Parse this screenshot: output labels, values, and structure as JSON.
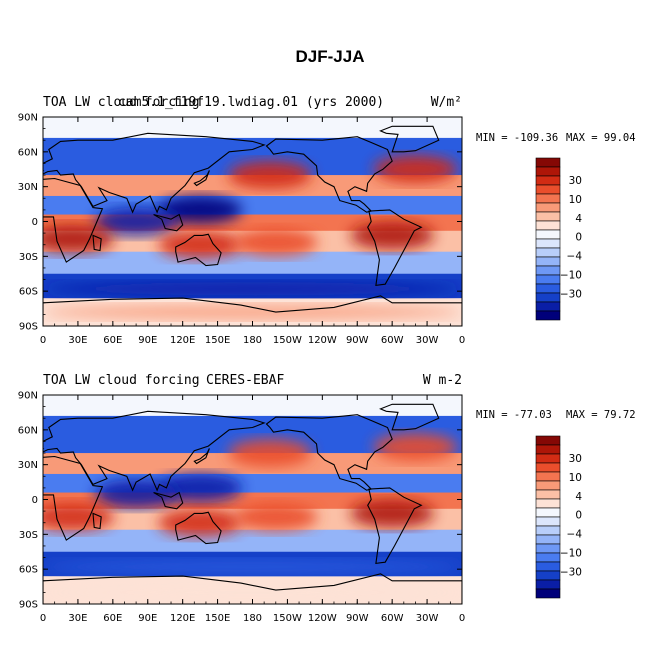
{
  "figure_title": "DJF-JJA",
  "chart_data": [
    {
      "type": "heatmap",
      "title_left": "TOA LW cloud forcing",
      "title_center": "cam5.1_f19f19.lwdiag.01 (yrs 2000)",
      "title_right": "W/m²",
      "min_text": "MIN = -109.36",
      "max_text": "MAX =  99.04",
      "min": -109.36,
      "max": 99.04,
      "xlabel": "",
      "ylabel": "",
      "lon_range": [
        0,
        360
      ],
      "lat_range": [
        -90,
        90
      ],
      "x_tick_labels": [
        "0",
        "30E",
        "60E",
        "90E",
        "120E",
        "150E",
        "180",
        "150W",
        "120W",
        "90W",
        "60W",
        "30W",
        "0"
      ],
      "y_tick_labels": [
        "90N",
        "60N",
        "30N",
        "0",
        "30S",
        "60S",
        "90S"
      ],
      "colorbar_labels": [
        "30",
        "10",
        "4",
        "0",
        "−4",
        "−10",
        "−30"
      ],
      "colorbar_levels": [
        -50,
        -40,
        -30,
        -20,
        -15,
        -10,
        -6,
        -4,
        -2,
        0,
        2,
        4,
        6,
        10,
        15,
        20,
        30,
        40,
        50
      ],
      "regions": [
        {
          "name": "west-pacific-warm-pool-negative",
          "lon": 135,
          "lat": 10,
          "value": -40
        },
        {
          "name": "indian-ocean-negative",
          "lon": 80,
          "lat": 0,
          "value": -30
        },
        {
          "name": "africa-positive",
          "lon": 25,
          "lat": -15,
          "value": 35
        },
        {
          "name": "australia-positive",
          "lon": 135,
          "lat": -20,
          "value": 30
        },
        {
          "name": "south-america-positive",
          "lon": 300,
          "lat": -12,
          "value": 40
        },
        {
          "name": "north-pacific-positive",
          "lon": 195,
          "lat": 40,
          "value": 25
        },
        {
          "name": "north-atlantic-positive",
          "lon": 320,
          "lat": 45,
          "value": 25
        },
        {
          "name": "south-pacific-convergence-positive",
          "lon": 200,
          "lat": -18,
          "value": 20
        },
        {
          "name": "southern-ocean-negative",
          "lon": 180,
          "lat": -58,
          "value": -30
        },
        {
          "name": "antarctic-positive",
          "lon": 180,
          "lat": -78,
          "value": 8
        }
      ]
    },
    {
      "type": "heatmap",
      "title_left": "TOA LW cloud forcing",
      "title_center": "CERES-EBAF",
      "title_right": "W m-2",
      "min_text": "MIN = -77.03",
      "max_text": "MAX =  79.72",
      "min": -77.03,
      "max": 79.72,
      "xlabel": "",
      "ylabel": "",
      "lon_range": [
        0,
        360
      ],
      "lat_range": [
        -90,
        90
      ],
      "x_tick_labels": [
        "0",
        "30E",
        "60E",
        "90E",
        "120E",
        "150E",
        "180",
        "150W",
        "120W",
        "90W",
        "60W",
        "30W",
        "0"
      ],
      "y_tick_labels": [
        "90N",
        "60N",
        "30N",
        "0",
        "30S",
        "60S",
        "90S"
      ],
      "colorbar_labels": [
        "30",
        "10",
        "4",
        "0",
        "−4",
        "−10",
        "−30"
      ],
      "colorbar_levels": [
        -50,
        -40,
        -30,
        -20,
        -15,
        -10,
        -6,
        -4,
        -2,
        0,
        2,
        4,
        6,
        10,
        15,
        20,
        30,
        40,
        50
      ],
      "regions": [
        {
          "name": "west-pacific-warm-pool-negative",
          "lon": 135,
          "lat": 10,
          "value": -35
        },
        {
          "name": "indian-ocean-negative",
          "lon": 80,
          "lat": 5,
          "value": -30
        },
        {
          "name": "africa-positive",
          "lon": 25,
          "lat": -15,
          "value": 30
        },
        {
          "name": "australia-positive",
          "lon": 135,
          "lat": -20,
          "value": 25
        },
        {
          "name": "south-america-positive",
          "lon": 300,
          "lat": -12,
          "value": 35
        },
        {
          "name": "north-pacific-positive",
          "lon": 195,
          "lat": 40,
          "value": 20
        },
        {
          "name": "north-atlantic-positive",
          "lon": 320,
          "lat": 45,
          "value": 20
        },
        {
          "name": "south-pacific-convergence-positive",
          "lon": 200,
          "lat": -15,
          "value": 20
        },
        {
          "name": "southern-ocean-negative",
          "lon": 180,
          "lat": -58,
          "value": -20
        },
        {
          "name": "antarctic-positive",
          "lon": 180,
          "lat": -80,
          "value": 4
        }
      ]
    }
  ],
  "palette": [
    "#00007a",
    "#0a1ea6",
    "#1540c8",
    "#2a5ce0",
    "#4a7cf0",
    "#6e98f5",
    "#94b4f8",
    "#b8cefa",
    "#dce6fc",
    "#f4f7fd",
    "#fde2d6",
    "#fbc0a6",
    "#f89a78",
    "#f37450",
    "#ea4e2c",
    "#d22c14",
    "#ae1608",
    "#850805"
  ]
}
